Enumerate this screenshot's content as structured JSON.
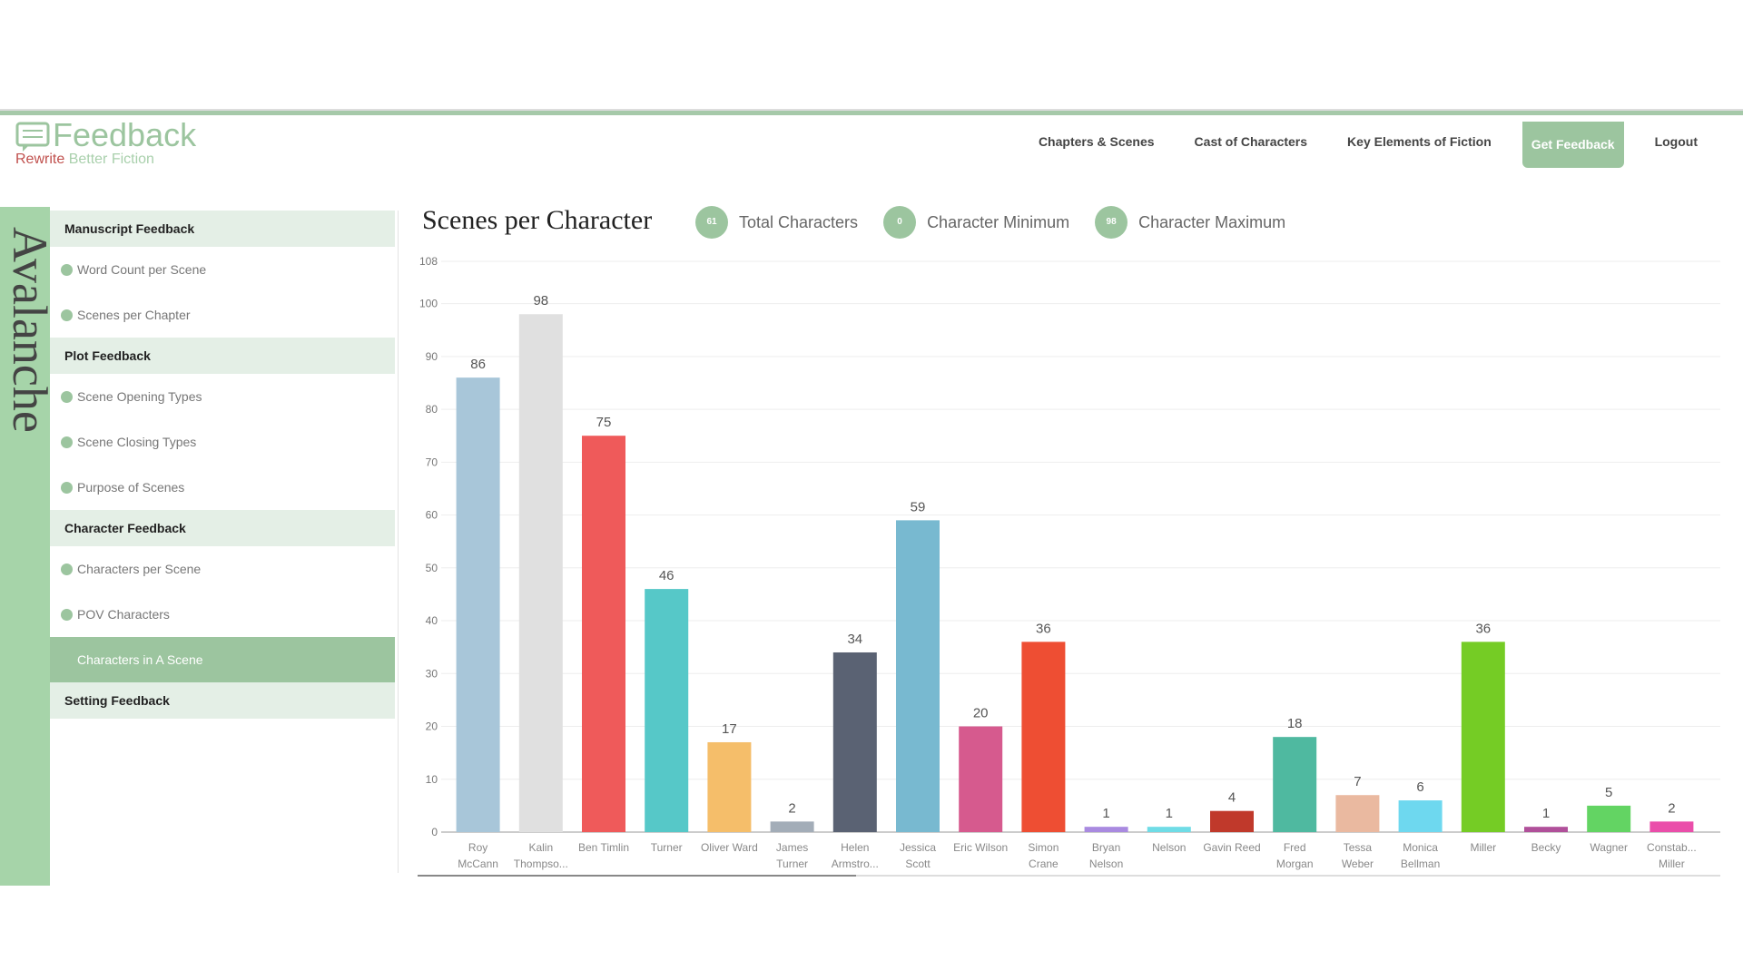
{
  "header": {
    "logo_title": "Feedback",
    "logo_tagline_1": "Rewrite",
    "logo_tagline_2": "Better Fiction"
  },
  "nav": [
    "Chapters & Scenes",
    "Cast of Characters",
    "Key Elements of Fiction",
    "Get Feedback",
    "Logout"
  ],
  "book_title": "Avalanche",
  "sidebar": [
    {
      "heading": "Manuscript Feedback",
      "items": [
        "Word Count per Scene",
        "Scenes per Chapter"
      ]
    },
    {
      "heading": "Plot Feedback",
      "items": [
        "Scene Opening Types",
        "Scene Closing Types",
        "Purpose of Scenes"
      ]
    },
    {
      "heading": "Character Feedback",
      "items": [
        "Characters per Scene",
        "POV Characters",
        "Characters in A Scene"
      ]
    },
    {
      "heading": "Setting Feedback"
    }
  ],
  "stats": [
    {
      "value": 61,
      "label": "Total Characters"
    },
    {
      "value": 0,
      "label": "Character Minimum"
    },
    {
      "value": 98,
      "label": "Character Maximum"
    }
  ],
  "chart_data": {
    "type": "bar",
    "title": "Scenes per Character",
    "categories": [
      "Roy McCann",
      "Kalin Thompso...",
      "Ben Timlin",
      "Turner",
      "Oliver Ward",
      "James Turner",
      "Helen Armstro...",
      "Jessica Scott",
      "Eric Wilson",
      "Simon Crane",
      "Bryan Nelson",
      "Nelson",
      "Gavin Reed",
      "Fred Morgan",
      "Tessa Weber",
      "Monica Bellman",
      "Miller",
      "Becky",
      "Wagner",
      "Constab... Miller"
    ],
    "values": [
      86,
      98,
      75,
      46,
      17,
      2,
      34,
      59,
      20,
      36,
      1,
      1,
      4,
      18,
      7,
      6,
      36,
      1,
      5,
      2
    ],
    "colors": [
      "#a8c6d9",
      "#e0e0e0",
      "#ef5a5a",
      "#56c8c8",
      "#f5be6a",
      "#a3adb8",
      "#5a6273",
      "#78b9d0",
      "#d65a8e",
      "#ee4e33",
      "#a98ae0",
      "#6fdce6",
      "#c0392b",
      "#4fb9a0",
      "#eab9a0",
      "#6ed8ef",
      "#75cc25",
      "#b0509a",
      "#63d463",
      "#ea4eaa"
    ],
    "ylim": [
      0,
      108
    ],
    "yticks": [
      0,
      10,
      20,
      30,
      40,
      50,
      60,
      70,
      80,
      90,
      100,
      108
    ],
    "grid": true
  }
}
